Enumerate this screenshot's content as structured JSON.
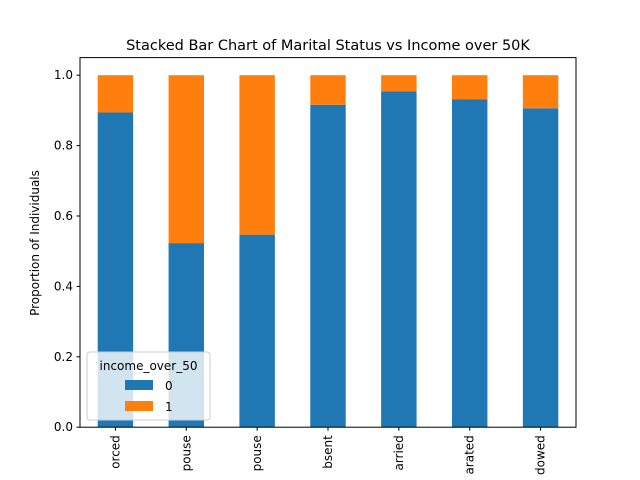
{
  "chart_data": {
    "type": "bar",
    "stacked": true,
    "title": "Stacked Bar Chart of Marital Status vs Income over 50K",
    "xlabel": "",
    "ylabel": "Proportion of Individuals",
    "ylim": [
      0,
      1.05
    ],
    "yticks": [
      "0.0",
      "0.2",
      "0.4",
      "0.6",
      "0.8",
      "1.0"
    ],
    "categories": [
      "orced",
      "pouse",
      "pouse",
      "bsent",
      "arried",
      "arated",
      "dowed"
    ],
    "series": [
      {
        "name": "0",
        "color": "#1f77b4",
        "values": [
          0.894,
          0.523,
          0.547,
          0.916,
          0.954,
          0.931,
          0.906
        ]
      },
      {
        "name": "1",
        "color": "#ff7f0e",
        "values": [
          0.106,
          0.477,
          0.453,
          0.084,
          0.046,
          0.069,
          0.094
        ]
      }
    ],
    "grid": false,
    "legend": {
      "title": "income_over_50",
      "placement": "lower-left"
    }
  }
}
